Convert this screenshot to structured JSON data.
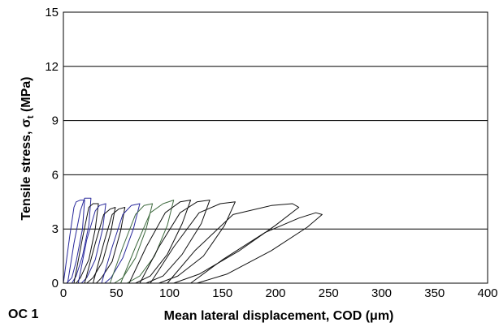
{
  "panel_label": "OC 1",
  "chart_data": {
    "type": "line",
    "title": "",
    "xlabel": "Mean lateral displacement, COD (μm)",
    "ylabel": "Tensile stress, σt (MPa)",
    "ylabel_parts": {
      "main": "Tensile stress, σ",
      "sub": "t",
      "tail": " (MPa)"
    },
    "xlim": [
      0,
      400
    ],
    "ylim": [
      0,
      15
    ],
    "x_ticks": [
      0,
      50,
      100,
      150,
      200,
      250,
      300,
      350,
      400
    ],
    "y_ticks": [
      0,
      3,
      6,
      9,
      12,
      15
    ],
    "x_tick_labels": [
      "0",
      "50",
      "100",
      "150",
      "200",
      "250",
      "300",
      "350",
      "400"
    ],
    "y_tick_labels": [
      "0",
      "3",
      "6",
      "9",
      "12",
      "15"
    ],
    "grid": {
      "horizontal": true,
      "vertical": false
    },
    "legend": "none",
    "colors": {
      "blue": "#2a2a9c",
      "green": "#3f6b3f",
      "black": "#111111"
    },
    "series": [
      {
        "color": "blue",
        "points": [
          [
            0,
            0
          ],
          [
            6,
            2.6
          ],
          [
            10,
            4.2
          ],
          [
            12,
            4.5
          ],
          [
            16,
            4.6
          ],
          [
            20,
            4.6
          ],
          [
            18,
            3.0
          ],
          [
            12,
            1.2
          ],
          [
            8,
            0.3
          ],
          [
            3,
            0
          ]
        ]
      },
      {
        "color": "blue",
        "points": [
          [
            4,
            0
          ],
          [
            10,
            2.2
          ],
          [
            16,
            4.0
          ],
          [
            20,
            4.7
          ],
          [
            26,
            4.7
          ],
          [
            24,
            3.2
          ],
          [
            18,
            1.5
          ],
          [
            12,
            0.4
          ],
          [
            8,
            0
          ]
        ]
      },
      {
        "color": "black",
        "points": [
          [
            10,
            0
          ],
          [
            18,
            2.5
          ],
          [
            24,
            4.2
          ],
          [
            28,
            4.4
          ],
          [
            33,
            4.4
          ],
          [
            30,
            3.0
          ],
          [
            24,
            1.3
          ],
          [
            16,
            0.3
          ],
          [
            12,
            0
          ]
        ]
      },
      {
        "color": "blue",
        "points": [
          [
            14,
            0
          ],
          [
            22,
            2.4
          ],
          [
            30,
            4.0
          ],
          [
            34,
            4.3
          ],
          [
            40,
            4.4
          ],
          [
            37,
            3.0
          ],
          [
            30,
            1.3
          ],
          [
            22,
            0.3
          ],
          [
            17,
            0
          ]
        ]
      },
      {
        "color": "black",
        "points": [
          [
            20,
            0
          ],
          [
            30,
            2.2
          ],
          [
            38,
            3.8
          ],
          [
            44,
            4.1
          ],
          [
            49,
            4.2
          ],
          [
            45,
            2.9
          ],
          [
            37,
            1.2
          ],
          [
            28,
            0.3
          ],
          [
            22,
            0
          ]
        ]
      },
      {
        "color": "black",
        "points": [
          [
            28,
            0
          ],
          [
            38,
            2.2
          ],
          [
            46,
            3.8
          ],
          [
            52,
            4.1
          ],
          [
            58,
            4.2
          ],
          [
            54,
            2.9
          ],
          [
            46,
            1.2
          ],
          [
            36,
            0.3
          ],
          [
            31,
            0
          ]
        ]
      },
      {
        "color": "blue",
        "points": [
          [
            36,
            0
          ],
          [
            46,
            2.0
          ],
          [
            56,
            3.8
          ],
          [
            64,
            4.3
          ],
          [
            72,
            4.4
          ],
          [
            66,
            3.0
          ],
          [
            56,
            1.4
          ],
          [
            45,
            0.3
          ],
          [
            39,
            0
          ]
        ]
      },
      {
        "color": "green",
        "points": [
          [
            44,
            0
          ],
          [
            56,
            2.0
          ],
          [
            68,
            3.8
          ],
          [
            76,
            4.3
          ],
          [
            84,
            4.4
          ],
          [
            78,
            3.0
          ],
          [
            68,
            1.4
          ],
          [
            56,
            0.3
          ],
          [
            48,
            0
          ]
        ]
      },
      {
        "color": "green",
        "points": [
          [
            54,
            0
          ],
          [
            68,
            2.0
          ],
          [
            82,
            3.9
          ],
          [
            94,
            4.4
          ],
          [
            104,
            4.6
          ],
          [
            98,
            3.2
          ],
          [
            86,
            1.5
          ],
          [
            72,
            0.4
          ],
          [
            60,
            0
          ]
        ]
      },
      {
        "color": "black",
        "points": [
          [
            62,
            0
          ],
          [
            78,
            2.0
          ],
          [
            96,
            3.9
          ],
          [
            110,
            4.5
          ],
          [
            120,
            4.6
          ],
          [
            112,
            3.3
          ],
          [
            98,
            1.6
          ],
          [
            82,
            0.4
          ],
          [
            68,
            0
          ]
        ]
      },
      {
        "color": "black",
        "points": [
          [
            72,
            0
          ],
          [
            90,
            2.0
          ],
          [
            110,
            3.9
          ],
          [
            126,
            4.5
          ],
          [
            138,
            4.6
          ],
          [
            130,
            3.3
          ],
          [
            112,
            1.6
          ],
          [
            94,
            0.4
          ],
          [
            78,
            0
          ]
        ]
      },
      {
        "color": "black",
        "points": [
          [
            82,
            0
          ],
          [
            104,
            2.0
          ],
          [
            128,
            3.9
          ],
          [
            148,
            4.4
          ],
          [
            162,
            4.5
          ],
          [
            152,
            3.2
          ],
          [
            132,
            1.5
          ],
          [
            108,
            0.4
          ],
          [
            90,
            0
          ]
        ]
      },
      {
        "color": "black",
        "points": [
          [
            98,
            0
          ],
          [
            124,
            1.8
          ],
          [
            160,
            3.8
          ],
          [
            196,
            4.3
          ],
          [
            216,
            4.4
          ],
          [
            222,
            4.2
          ],
          [
            200,
            3.2
          ],
          [
            166,
            1.8
          ],
          [
            128,
            0.5
          ],
          [
            104,
            0
          ]
        ]
      },
      {
        "color": "black",
        "points": [
          [
            120,
            0
          ],
          [
            150,
            1.3
          ],
          [
            190,
            2.8
          ],
          [
            222,
            3.6
          ],
          [
            238,
            3.9
          ],
          [
            244,
            3.8
          ],
          [
            230,
            3.1
          ],
          [
            196,
            1.8
          ],
          [
            154,
            0.5
          ],
          [
            126,
            0
          ]
        ]
      }
    ]
  }
}
